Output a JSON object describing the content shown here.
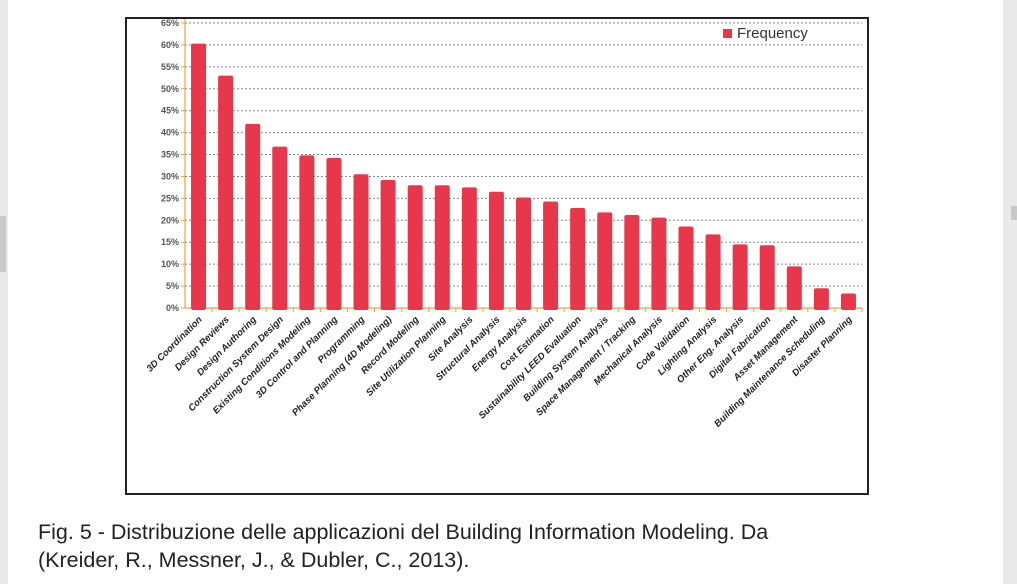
{
  "chart_data": {
    "type": "bar",
    "title": "",
    "xlabel": "",
    "ylabel": "",
    "ylim": [
      0,
      65
    ],
    "yticks": [
      "0%",
      "5%",
      "10%",
      "15%",
      "20%",
      "25%",
      "30%",
      "35%",
      "40%",
      "45%",
      "50%",
      "55%",
      "60%",
      "65%"
    ],
    "grid": true,
    "legend": {
      "position": "top-right",
      "entries": [
        "Frequency"
      ]
    },
    "categories": [
      "3D Coordination",
      "Design Reviews",
      "Design Authoring",
      "Construction System Design",
      "Existing Conditions Modeling",
      "3D Control and Planning",
      "Programming",
      "Phase Planning (4D Modeling)",
      "Record Modeling",
      "Site Utilization Planning",
      "Site Analysis",
      "Structural Analysis",
      "Energy Analysis",
      "Cost Estimation",
      "Sustainability LEED Evaluation",
      "Building System Analysis",
      "Space Management / Tracking",
      "Mechanical Analysis",
      "Code Validation",
      "Lighting Analysis",
      "Other Eng. Analysis",
      "Digital Fabrication",
      "Asset Management",
      "Building Maintenance Scheduling",
      "Disaster Planning"
    ],
    "series": [
      {
        "name": "Frequency",
        "color": "#e8374a",
        "values": [
          60.3,
          53,
          42,
          36.8,
          34.8,
          34.2,
          30.5,
          29.2,
          28,
          28,
          27.5,
          26.5,
          25.2,
          24.3,
          22.8,
          21.8,
          21.2,
          20.6,
          18.6,
          16.8,
          14.5,
          14.3,
          9.5,
          4.5,
          3.3
        ]
      }
    ]
  },
  "caption": {
    "line1": "Fig. 5 - Distribuzione delle applicazioni del Building Information Modeling. Da",
    "line2": "(Kreider, R., Messner, J., & Dubler, C., 2013)."
  }
}
